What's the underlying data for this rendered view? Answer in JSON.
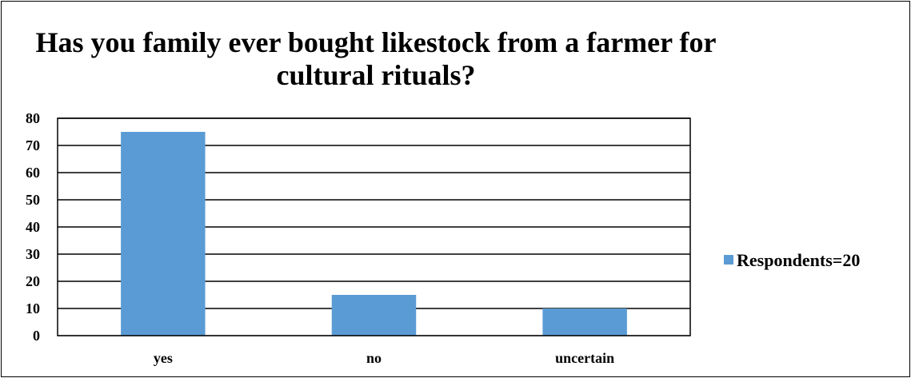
{
  "chart_data": {
    "type": "bar",
    "title_lines": [
      "Has you family ever bought likestock from a farmer for",
      "cultural rituals?"
    ],
    "categories": [
      "yes",
      "no",
      "uncertain"
    ],
    "series": [
      {
        "name": "Respondents=20",
        "values": [
          75,
          15,
          10
        ]
      }
    ],
    "ylim": [
      0,
      80
    ],
    "yticks": [
      "0",
      "10",
      "20",
      "30",
      "40",
      "50",
      "60",
      "70",
      "80"
    ],
    "grid": true,
    "legend_position": "right",
    "bar_color": "#5b9bd5"
  }
}
